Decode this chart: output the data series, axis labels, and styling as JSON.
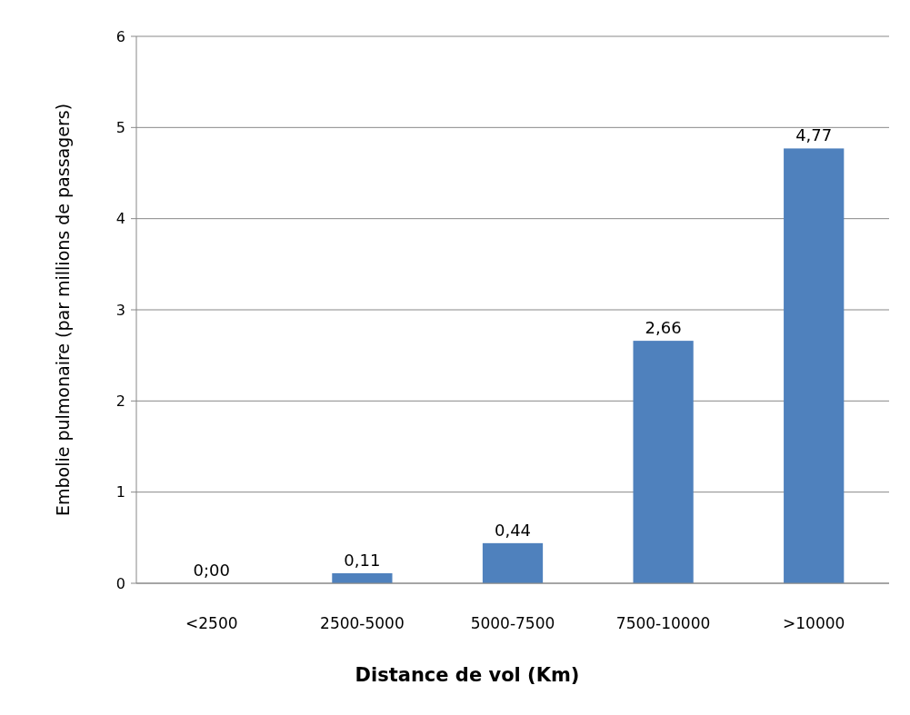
{
  "chart_data": {
    "type": "bar",
    "xlabel": "Distance de vol (Km)",
    "ylabel": "Embolie pulmonaire (par millions de passagers)",
    "categories": [
      "<2500",
      "2500-5000",
      "5000-7500",
      "7500-10000",
      ">10000"
    ],
    "values": [
      0,
      0.11,
      0.44,
      2.66,
      4.77
    ],
    "value_labels": [
      "0;00",
      "0,11",
      "0,44",
      "2,66",
      "4,77"
    ],
    "color": "#4f81bd",
    "ylim": [
      0,
      6
    ],
    "yticks": [
      0,
      1,
      2,
      3,
      4,
      5,
      6
    ],
    "grid": "y"
  }
}
